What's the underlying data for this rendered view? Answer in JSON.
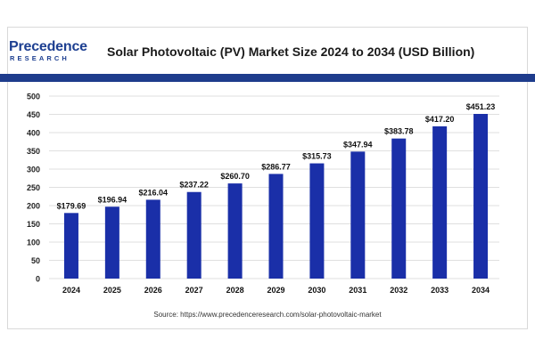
{
  "logo": {
    "brand_text": "Precedence",
    "sub_text": "RESEARCH"
  },
  "source": "Source: https://www.precedenceresearch.com/solar-photovoltaic-market",
  "colors": {
    "bar": "#1a2fa8",
    "band": "#1e3c8c",
    "brand": "#1d3f91",
    "grid": "#d4d4d4"
  },
  "chart_data": {
    "type": "bar",
    "title": "Solar Photovoltaic (PV) Market Size 2024 to 2034 (USD Billion)",
    "xlabel": "",
    "ylabel": "",
    "categories": [
      "2024",
      "2025",
      "2026",
      "2027",
      "2028",
      "2029",
      "2030",
      "2031",
      "2032",
      "2033",
      "2034"
    ],
    "values": [
      179.69,
      196.94,
      216.04,
      237.22,
      260.7,
      286.77,
      315.73,
      347.94,
      383.78,
      417.2,
      451.23
    ],
    "data_labels": [
      "$179.69",
      "$196.94",
      "$216.04",
      "$237.22",
      "$260.70",
      "$286.77",
      "$315.73",
      "$347.94",
      "$383.78",
      "$417.20",
      "$451.23"
    ],
    "ylim": [
      0,
      500
    ],
    "yticks": [
      0,
      50,
      100,
      150,
      200,
      250,
      300,
      350,
      400,
      450,
      500
    ],
    "grid": true,
    "legend": "none"
  }
}
